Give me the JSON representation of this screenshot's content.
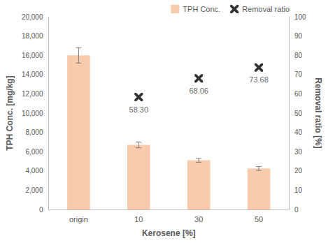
{
  "chart_data": {
    "type": "bar",
    "categories": [
      "origin",
      "10",
      "30",
      "50"
    ],
    "x_label": "Kerosene [%]",
    "y_label": "TPH Conc. [mg/kg]",
    "y2_label": "Removal ratio [%]",
    "ylim": [
      0,
      20000
    ],
    "yticks": [
      0,
      2000,
      4000,
      6000,
      8000,
      10000,
      12000,
      14000,
      16000,
      18000,
      20000
    ],
    "y2lim": [
      0,
      100
    ],
    "y2ticks": [
      0,
      10,
      20,
      30,
      40,
      50,
      60,
      70,
      80,
      90,
      100
    ],
    "grid": false,
    "legend": "top-right",
    "series": [
      {
        "name": "TPH Conc.",
        "type": "bar",
        "color": "#f8cbad",
        "values": [
          16000,
          6700,
          5100,
          4250
        ],
        "errors": [
          800,
          300,
          200,
          200
        ]
      },
      {
        "name": "Removal ratio",
        "type": "scatter",
        "axis": "y2",
        "color": "#000000",
        "marker": "asterisk",
        "values": [
          null,
          58.3,
          68.06,
          73.68
        ],
        "value_labels": [
          null,
          "58.30",
          "68.06",
          "73.68"
        ],
        "data_labels": true
      }
    ]
  }
}
